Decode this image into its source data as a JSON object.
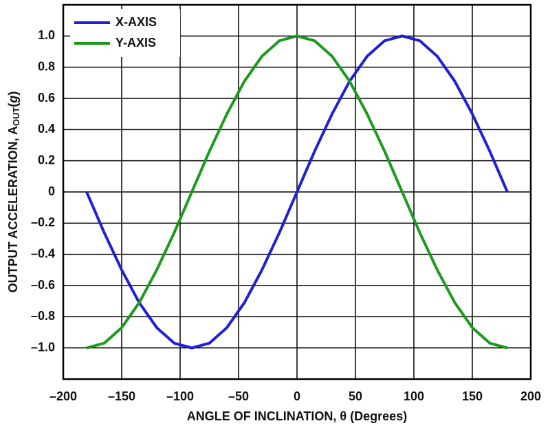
{
  "chart_data": {
    "type": "line",
    "xlabel": "ANGLE OF INCLINATION, θ (Degrees)",
    "ylabel": "OUTPUT ACCELERATION, A",
    "ylabel_subscript": "OUT",
    "ylabel_unit_open": "(",
    "ylabel_unit": "g",
    "ylabel_unit_close": ")",
    "x": [
      -180,
      -165,
      -150,
      -135,
      -120,
      -105,
      -90,
      -75,
      -60,
      -45,
      -30,
      -15,
      0,
      15,
      30,
      45,
      60,
      75,
      90,
      105,
      120,
      135,
      150,
      165,
      180
    ],
    "series": [
      {
        "name": "X-AXIS",
        "color": "#1f1fd8",
        "values": [
          0,
          -0.26,
          -0.5,
          -0.71,
          -0.87,
          -0.97,
          -1,
          -0.97,
          -0.87,
          -0.71,
          -0.5,
          -0.26,
          0,
          0.26,
          0.5,
          0.71,
          0.87,
          0.97,
          1,
          0.97,
          0.87,
          0.71,
          0.5,
          0.26,
          0
        ]
      },
      {
        "name": "Y-AXIS",
        "color": "#1c9a1c",
        "values": [
          -1,
          -0.97,
          -0.87,
          -0.71,
          -0.5,
          -0.26,
          0,
          0.26,
          0.5,
          0.71,
          0.87,
          0.97,
          1,
          0.97,
          0.87,
          0.71,
          0.5,
          0.26,
          0,
          -0.26,
          -0.5,
          -0.71,
          -0.87,
          -0.97,
          -1
        ]
      }
    ],
    "xlim": [
      -200,
      200
    ],
    "xticks": [
      {
        "value": -200,
        "label": "–200"
      },
      {
        "value": -150,
        "label": "–150"
      },
      {
        "value": -100,
        "label": "–100"
      },
      {
        "value": -50,
        "label": "–50"
      },
      0,
      50,
      100,
      150,
      200
    ],
    "ylim": [
      -1.2,
      1.2
    ],
    "yticks": [
      {
        "value": -1,
        "label": "–1.0"
      },
      {
        "value": -0.8,
        "label": "–0.8"
      },
      {
        "value": -0.6,
        "label": "–0.6"
      },
      {
        "value": -0.4,
        "label": "–0.4"
      },
      {
        "value": -0.2,
        "label": "–0.2"
      },
      0,
      0.2,
      0.4,
      0.6,
      0.8,
      {
        "value": 1,
        "label": "1.0"
      }
    ],
    "grid": true,
    "legend": "top-left"
  }
}
